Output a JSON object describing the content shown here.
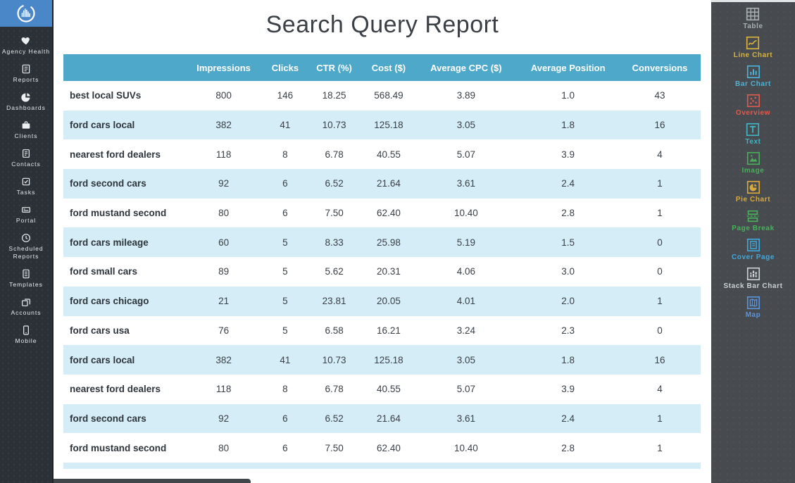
{
  "report": {
    "title": "Search Query Report",
    "table": {
      "columns": [
        "",
        "Impressions",
        "Clicks",
        "CTR (%)",
        "Cost ($)",
        "Average CPC ($)",
        "Average Position",
        "Conversions"
      ],
      "rows": [
        [
          "best local SUVs",
          "800",
          "146",
          "18.25",
          "568.49",
          "3.89",
          "1.0",
          "43"
        ],
        [
          "ford cars local",
          "382",
          "41",
          "10.73",
          "125.18",
          "3.05",
          "1.8",
          "16"
        ],
        [
          "nearest ford dealers",
          "118",
          "8",
          "6.78",
          "40.55",
          "5.07",
          "3.9",
          "4"
        ],
        [
          "ford second cars",
          "92",
          "6",
          "6.52",
          "21.64",
          "3.61",
          "2.4",
          "1"
        ],
        [
          "ford mustand second",
          "80",
          "6",
          "7.50",
          "62.40",
          "10.40",
          "2.8",
          "1"
        ],
        [
          "ford cars mileage",
          "60",
          "5",
          "8.33",
          "25.98",
          "5.19",
          "1.5",
          "0"
        ],
        [
          "ford small cars",
          "89",
          "5",
          "5.62",
          "20.31",
          "4.06",
          "3.0",
          "0"
        ],
        [
          "ford cars chicago",
          "21",
          "5",
          "23.81",
          "20.05",
          "4.01",
          "2.0",
          "1"
        ],
        [
          "ford cars usa",
          "76",
          "5",
          "6.58",
          "16.21",
          "3.24",
          "2.3",
          "0"
        ],
        [
          "ford cars local",
          "382",
          "41",
          "10.73",
          "125.18",
          "3.05",
          "1.8",
          "16"
        ],
        [
          "nearest ford dealers",
          "118",
          "8",
          "6.78",
          "40.55",
          "5.07",
          "3.9",
          "4"
        ],
        [
          "ford second cars",
          "92",
          "6",
          "6.52",
          "21.64",
          "3.61",
          "2.4",
          "1"
        ],
        [
          "ford mustand second",
          "80",
          "6",
          "7.50",
          "62.40",
          "10.40",
          "2.8",
          "1"
        ]
      ]
    }
  },
  "left_sidebar": {
    "items": [
      {
        "label": "Agency Health",
        "icon": "heart-icon"
      },
      {
        "label": "Reports",
        "icon": "report-icon"
      },
      {
        "label": "Dashboards",
        "icon": "pie-icon"
      },
      {
        "label": "Clients",
        "icon": "briefcase-icon"
      },
      {
        "label": "Contacts",
        "icon": "contact-card-icon"
      },
      {
        "label": "Tasks",
        "icon": "checkbox-icon"
      },
      {
        "label": "Portal",
        "icon": "portal-icon"
      },
      {
        "label": "Scheduled Reports",
        "icon": "clock-icon"
      },
      {
        "label": "Templates",
        "icon": "template-icon"
      },
      {
        "label": "Accounts",
        "icon": "accounts-icon"
      },
      {
        "label": "Mobile",
        "icon": "mobile-icon"
      }
    ]
  },
  "right_sidebar": {
    "items": [
      {
        "label": "Table",
        "icon": "table-icon",
        "color": "#a9aeb2"
      },
      {
        "label": "Line Chart",
        "icon": "line-chart-icon",
        "color": "#d9b43c"
      },
      {
        "label": "Bar Chart",
        "icon": "bar-chart-icon",
        "color": "#4cb4d8"
      },
      {
        "label": "Overview",
        "icon": "overview-icon",
        "color": "#e05a4e"
      },
      {
        "label": "Text",
        "icon": "text-icon",
        "color": "#3fb6c4"
      },
      {
        "label": "Image",
        "icon": "image-icon",
        "color": "#49ad5b"
      },
      {
        "label": "Pie Chart",
        "icon": "pie-chart-icon",
        "color": "#d9a93c"
      },
      {
        "label": "Page Break",
        "icon": "page-break-icon",
        "color": "#47b15a"
      },
      {
        "label": "Cover Page",
        "icon": "cover-page-icon",
        "color": "#3fa9dc"
      },
      {
        "label": "Stack Bar Chart",
        "icon": "stack-bar-chart-icon",
        "color": "#ccd1d5"
      },
      {
        "label": "Map",
        "icon": "map-icon",
        "color": "#5b94d9"
      }
    ]
  },
  "colors": {
    "logo_bg": "#4a87c8",
    "left_sidebar_bg": "#2c3137",
    "right_sidebar_bg": "#474b4f",
    "table_header_bg": "#4da8ca",
    "row_alt_bg": "#d5edf6"
  }
}
